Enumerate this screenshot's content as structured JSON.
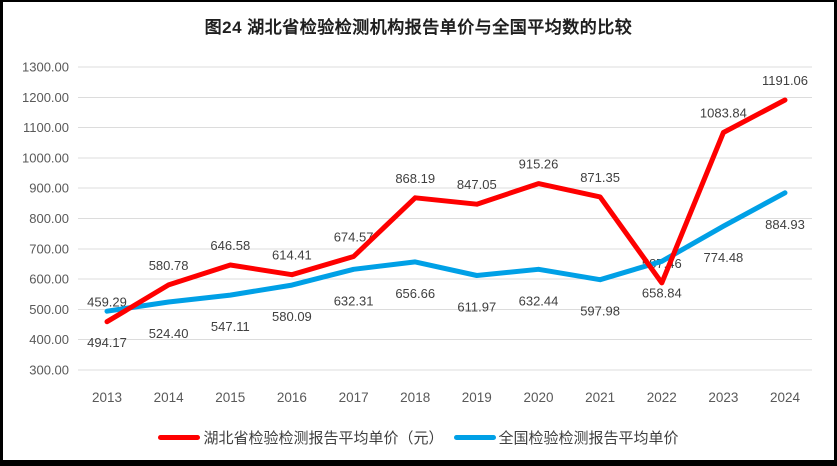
{
  "figure": {
    "background": "#ffffff",
    "border_color": "#000000"
  },
  "chart_data": {
    "type": "line",
    "title": "图24 湖北省检验检测机构报告单价与全国平均数的比较",
    "categories": [
      "2013",
      "2014",
      "2015",
      "2016",
      "2017",
      "2018",
      "2019",
      "2020",
      "2021",
      "2022",
      "2023",
      "2024"
    ],
    "series": [
      {
        "key": "hubei-avg-price",
        "name": "湖北省检验检测报告平均单价（元）",
        "color": "#fe0000",
        "label_position": "above",
        "values": [
          459.29,
          580.78,
          646.58,
          614.41,
          674.57,
          868.19,
          847.05,
          915.26,
          871.35,
          587.46,
          1083.84,
          1191.06
        ]
      },
      {
        "key": "national-avg-price",
        "name": "全国检验检测报告平均单价",
        "color": "#00a0e6",
        "label_position": "below",
        "values": [
          494.17,
          524.4,
          547.11,
          580.09,
          632.31,
          656.66,
          611.97,
          632.44,
          597.98,
          658.84,
          774.48,
          884.93
        ]
      }
    ],
    "ylim": [
      300,
      1300
    ],
    "ytick_step": 100,
    "ytick_labels": [
      "300.00",
      "400.00",
      "500.00",
      "600.00",
      "700.00",
      "800.00",
      "900.00",
      "1000.00",
      "1100.00",
      "1200.00",
      "1300.00"
    ],
    "value_decimals": 2,
    "grid": true,
    "legend_position": "bottom",
    "colors": {
      "gridline": "#dcdcdc",
      "axis_text": "#595959",
      "data_label": "#404040",
      "title_text": "#1f1f1f",
      "legend_text": "#404040"
    }
  }
}
